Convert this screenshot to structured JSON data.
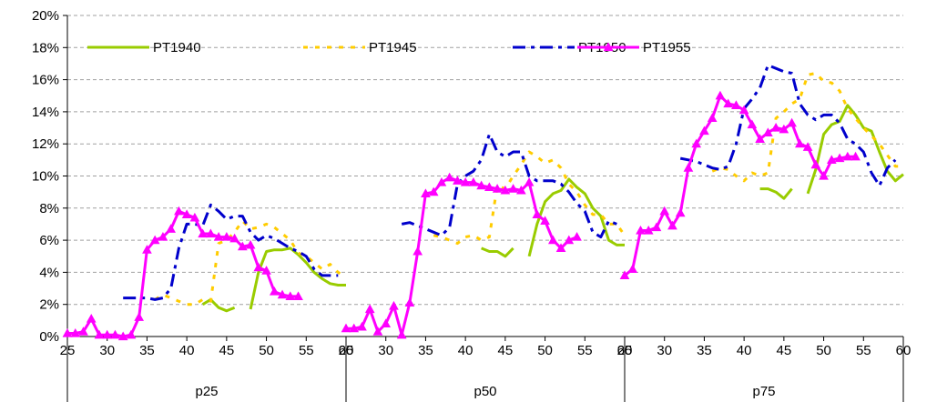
{
  "chart_data": {
    "type": "line",
    "title": "",
    "xlabel": "",
    "ylabel": "",
    "ylim": [
      0,
      20
    ],
    "y_ticks": [
      "0%",
      "2%",
      "4%",
      "6%",
      "8%",
      "10%",
      "12%",
      "14%",
      "16%",
      "18%",
      "20%"
    ],
    "grid": "horizontal dashed",
    "legend": "top",
    "panels": [
      {
        "label": "p25",
        "xlim": [
          25,
          60
        ],
        "x_ticks": [
          "25",
          "30",
          "35",
          "40",
          "45",
          "50",
          "55",
          "60"
        ]
      },
      {
        "label": "p50",
        "xlim": [
          25,
          60
        ],
        "x_ticks": [
          "25",
          "30",
          "35",
          "40",
          "45",
          "50",
          "55",
          "60"
        ]
      },
      {
        "label": "p75",
        "xlim": [
          25,
          60
        ],
        "x_ticks": [
          "25",
          "30",
          "35",
          "40",
          "45",
          "50",
          "55",
          "60"
        ]
      }
    ],
    "series": [
      {
        "name": "PT1940",
        "color": "#99CC00",
        "style": "solid",
        "panels": [
          {
            "x": [
              42,
              43,
              44,
              45,
              46,
              47,
              48,
              49,
              50,
              51,
              52,
              53,
              54,
              55,
              56,
              57,
              58,
              59,
              60
            ],
            "y": [
              2.0,
              2.3,
              1.8,
              1.6,
              1.8,
              null,
              1.7,
              4.0,
              5.3,
              5.4,
              5.4,
              5.5,
              5.1,
              4.6,
              4.0,
              3.6,
              3.3,
              3.2,
              3.2
            ]
          },
          {
            "x": [
              42,
              43,
              44,
              45,
              46,
              47,
              48,
              49,
              50,
              51,
              52,
              53,
              54,
              55,
              56,
              57,
              58,
              59,
              60
            ],
            "y": [
              5.5,
              5.3,
              5.3,
              5.0,
              5.5,
              null,
              5.0,
              7.0,
              8.4,
              8.9,
              9.1,
              9.8,
              9.3,
              8.9,
              8.0,
              7.5,
              6.0,
              5.7,
              5.7
            ]
          },
          {
            "x": [
              42,
              43,
              44,
              45,
              46,
              47,
              48,
              49,
              50,
              51,
              52,
              53,
              54,
              55,
              56,
              57,
              58,
              59,
              60
            ],
            "y": [
              9.2,
              9.2,
              9.0,
              8.6,
              9.2,
              null,
              8.9,
              10.4,
              12.6,
              13.2,
              13.4,
              14.4,
              13.8,
              13.0,
              12.8,
              11.5,
              10.3,
              9.7,
              10.1
            ]
          }
        ]
      },
      {
        "name": "PT1945",
        "color": "#FFCC00",
        "style": "dotted",
        "panels": [
          {
            "x": [
              36,
              37,
              38,
              39,
              40,
              41,
              42,
              43,
              44,
              45,
              46,
              47,
              48,
              49,
              50,
              51,
              52,
              53,
              54,
              55,
              56,
              57,
              58,
              59,
              60
            ],
            "y": [
              2.3,
              2.6,
              2.4,
              2.2,
              2.0,
              2.0,
              2.3,
              2.2,
              5.8,
              6.0,
              6.5,
              7.2,
              6.7,
              6.8,
              7.0,
              6.8,
              6.4,
              6.0,
              5.2,
              5.0,
              4.6,
              4.2,
              4.5,
              4.0,
              3.7
            ]
          },
          {
            "x": [
              36,
              37,
              38,
              39,
              40,
              41,
              42,
              43,
              44,
              45,
              46,
              47,
              48,
              49,
              50,
              51,
              52,
              53,
              54,
              55,
              56,
              57,
              58,
              59,
              60
            ],
            "y": [
              6.3,
              6.2,
              6.0,
              5.8,
              6.2,
              6.3,
              6.0,
              6.2,
              9.4,
              9.2,
              10.0,
              10.7,
              11.5,
              11.2,
              10.8,
              11.0,
              10.5,
              9.5,
              9.0,
              8.2,
              7.6,
              7.6,
              7.0,
              7.0,
              6.3
            ]
          },
          {
            "x": [
              36,
              37,
              38,
              39,
              40,
              41,
              42,
              43,
              44,
              45,
              46,
              47,
              48,
              49,
              50,
              51,
              52,
              53,
              54,
              55,
              56,
              57,
              58,
              59,
              60
            ],
            "y": [
              10.3,
              10.5,
              10.4,
              10.0,
              9.7,
              10.2,
              10.0,
              10.2,
              13.6,
              14.0,
              14.5,
              14.8,
              16.3,
              16.4,
              15.9,
              15.8,
              15.3,
              14.2,
              13.6,
              13.0,
              12.5,
              12.0,
              11.3,
              10.6,
              10.6
            ]
          }
        ]
      },
      {
        "name": "PT1950",
        "color": "#0000CC",
        "style": "dashdot",
        "panels": [
          {
            "x": [
              32,
              33,
              34,
              35,
              36,
              37,
              38,
              39,
              40,
              41,
              42,
              43,
              44,
              45,
              46,
              47,
              48,
              49,
              50,
              51,
              52,
              53,
              54,
              55,
              56,
              57,
              58,
              59
            ],
            "y": [
              2.4,
              2.4,
              2.4,
              2.4,
              2.3,
              2.4,
              3.0,
              5.5,
              7.0,
              7.0,
              6.9,
              8.2,
              7.8,
              7.3,
              7.5,
              7.5,
              6.5,
              6.0,
              6.3,
              6.1,
              5.8,
              5.5,
              5.3,
              5.0,
              4.2,
              3.8,
              3.8,
              3.8
            ]
          },
          {
            "x": [
              32,
              33,
              34,
              35,
              36,
              37,
              38,
              39,
              40,
              41,
              42,
              43,
              44,
              45,
              46,
              47,
              48,
              49,
              50,
              51,
              52,
              53,
              54,
              55,
              56,
              57,
              58,
              59
            ],
            "y": [
              7.0,
              7.1,
              6.9,
              6.7,
              6.5,
              6.3,
              6.8,
              9.5,
              10.0,
              10.3,
              11.0,
              12.6,
              11.5,
              11.2,
              11.5,
              11.5,
              10.0,
              9.7,
              9.7,
              9.7,
              9.5,
              9.0,
              8.3,
              7.8,
              6.5,
              6.2,
              7.2,
              7.0
            ]
          },
          {
            "x": [
              32,
              33,
              34,
              35,
              36,
              37,
              38,
              39,
              40,
              41,
              42,
              43,
              44,
              45,
              46,
              47,
              48,
              49,
              50,
              51,
              52,
              53,
              54,
              55,
              56,
              57,
              58,
              59
            ],
            "y": [
              11.1,
              11.0,
              10.9,
              10.7,
              10.5,
              10.4,
              10.6,
              12.0,
              14.2,
              14.8,
              15.5,
              16.9,
              16.7,
              16.5,
              16.4,
              14.5,
              13.8,
              13.5,
              13.8,
              13.8,
              13.3,
              12.3,
              12.0,
              11.5,
              10.2,
              9.4,
              10.5,
              11.0
            ]
          }
        ]
      },
      {
        "name": "PT1955",
        "color": "#FF00FF",
        "style": "solid-triangle",
        "panels": [
          {
            "x": [
              25,
              26,
              27,
              28,
              29,
              30,
              31,
              32,
              33,
              34,
              35,
              36,
              37,
              38,
              39,
              40,
              41,
              42,
              43,
              44,
              45,
              46,
              47,
              48,
              49,
              50,
              51,
              52,
              53,
              54
            ],
            "y": [
              0.2,
              0.2,
              0.3,
              1.1,
              0.1,
              0.1,
              0.1,
              0.0,
              0.1,
              1.2,
              5.4,
              6.0,
              6.2,
              6.7,
              7.8,
              7.6,
              7.4,
              6.4,
              6.4,
              6.2,
              6.2,
              6.1,
              5.6,
              5.7,
              4.3,
              4.1,
              2.8,
              2.6,
              2.5,
              2.5
            ]
          },
          {
            "x": [
              25,
              26,
              27,
              28,
              29,
              30,
              31,
              32,
              33,
              34,
              35,
              36,
              37,
              38,
              39,
              40,
              41,
              42,
              43,
              44,
              45,
              46,
              47,
              48,
              49,
              50,
              51,
              52,
              53,
              54
            ],
            "y": [
              0.5,
              0.5,
              0.6,
              1.7,
              0.3,
              0.8,
              1.9,
              0.1,
              2.1,
              5.3,
              8.9,
              9.0,
              9.6,
              9.9,
              9.7,
              9.6,
              9.6,
              9.4,
              9.3,
              9.2,
              9.1,
              9.2,
              9.1,
              9.6,
              7.6,
              7.2,
              6.0,
              5.5,
              6.0,
              6.2
            ]
          },
          {
            "x": [
              25,
              26,
              27,
              28,
              29,
              30,
              31,
              32,
              33,
              34,
              35,
              36,
              37,
              38,
              39,
              40,
              41,
              42,
              43,
              44,
              45,
              46,
              47,
              48,
              49,
              50,
              51,
              52,
              53,
              54
            ],
            "y": [
              3.8,
              4.2,
              6.6,
              6.6,
              6.8,
              7.8,
              6.9,
              7.7,
              10.5,
              12.0,
              12.8,
              13.6,
              15.0,
              14.5,
              14.4,
              14.1,
              13.2,
              12.3,
              12.7,
              13.0,
              12.9,
              13.3,
              12.0,
              11.8,
              10.7,
              10.0,
              11.0,
              11.1,
              11.2,
              11.2
            ]
          }
        ]
      }
    ]
  }
}
